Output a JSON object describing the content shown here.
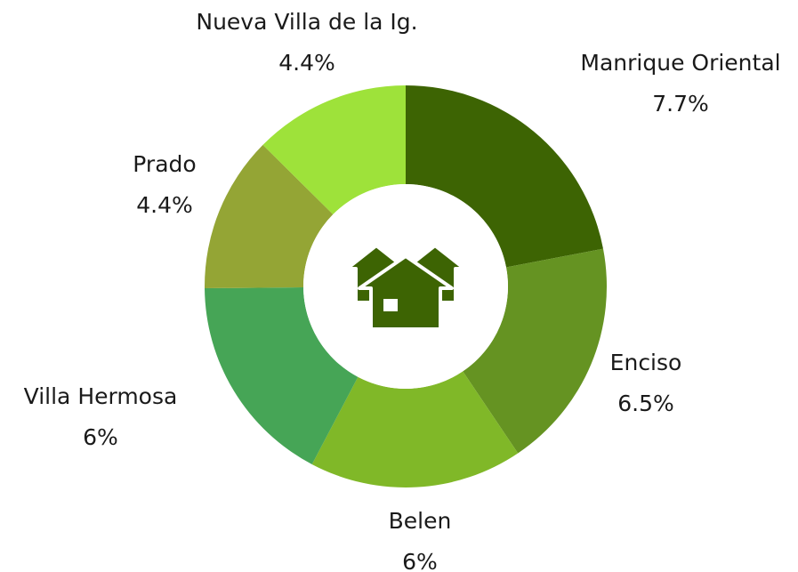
{
  "chart_data": {
    "type": "pie",
    "categories": [
      "Manrique Oriental",
      "Enciso",
      "Belen",
      "Villa Hermosa",
      "Prado",
      "Nueva Villa de la Ig."
    ],
    "values": [
      7.7,
      6.5,
      6,
      6,
      4.4,
      4.4
    ],
    "value_labels": [
      "7.7%",
      "6.5%",
      "6%",
      "6%",
      "4.4%",
      "4.4%"
    ],
    "colors": [
      "#3d6403",
      "#659322",
      "#80b828",
      "#46a556",
      "#94a535",
      "#9ee23a"
    ]
  }
}
